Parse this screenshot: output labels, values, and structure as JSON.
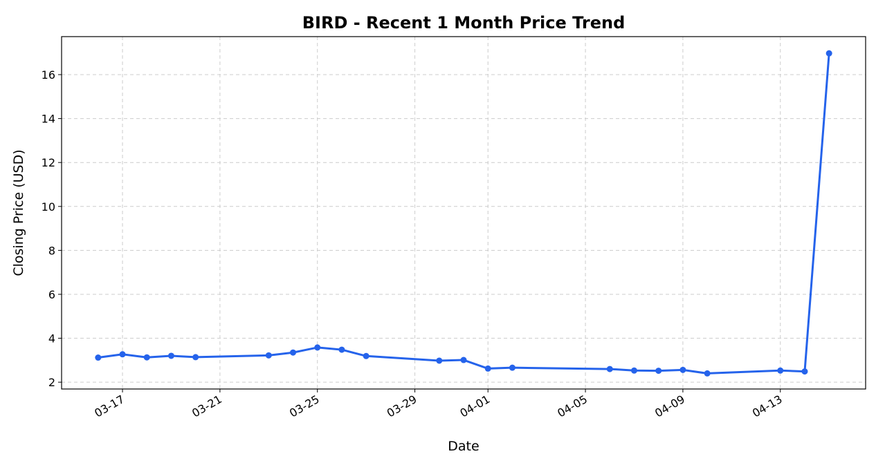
{
  "chart_data": {
    "type": "line",
    "title": "BIRD - Recent 1 Month Price Trend",
    "x_label": "Date",
    "y_label": "Closing Price (USD)",
    "x": [
      "03-16",
      "03-17",
      "03-18",
      "03-19",
      "03-20",
      "03-23",
      "03-24",
      "03-25",
      "03-26",
      "03-27",
      "03-30",
      "03-31",
      "04-01",
      "04-02",
      "04-06",
      "04-07",
      "04-08",
      "04-09",
      "04-10",
      "04-13",
      "04-14",
      "04-15"
    ],
    "series": [
      {
        "name": "BIRD",
        "color": "#2563eb",
        "values": [
          3.12,
          3.27,
          3.13,
          3.2,
          3.14,
          3.22,
          3.35,
          3.58,
          3.48,
          3.19,
          2.98,
          3.01,
          2.62,
          2.66,
          2.6,
          2.53,
          2.52,
          2.56,
          2.4,
          2.53,
          2.49,
          16.97
        ]
      }
    ],
    "xticks": [
      "03-17",
      "03-21",
      "03-25",
      "03-29",
      "04-01",
      "04-05",
      "04-09",
      "04-13"
    ],
    "ylim": [
      1.69,
      17.73
    ],
    "yticks": [
      2,
      4,
      6,
      8,
      10,
      12,
      14,
      16
    ],
    "grid": true
  }
}
